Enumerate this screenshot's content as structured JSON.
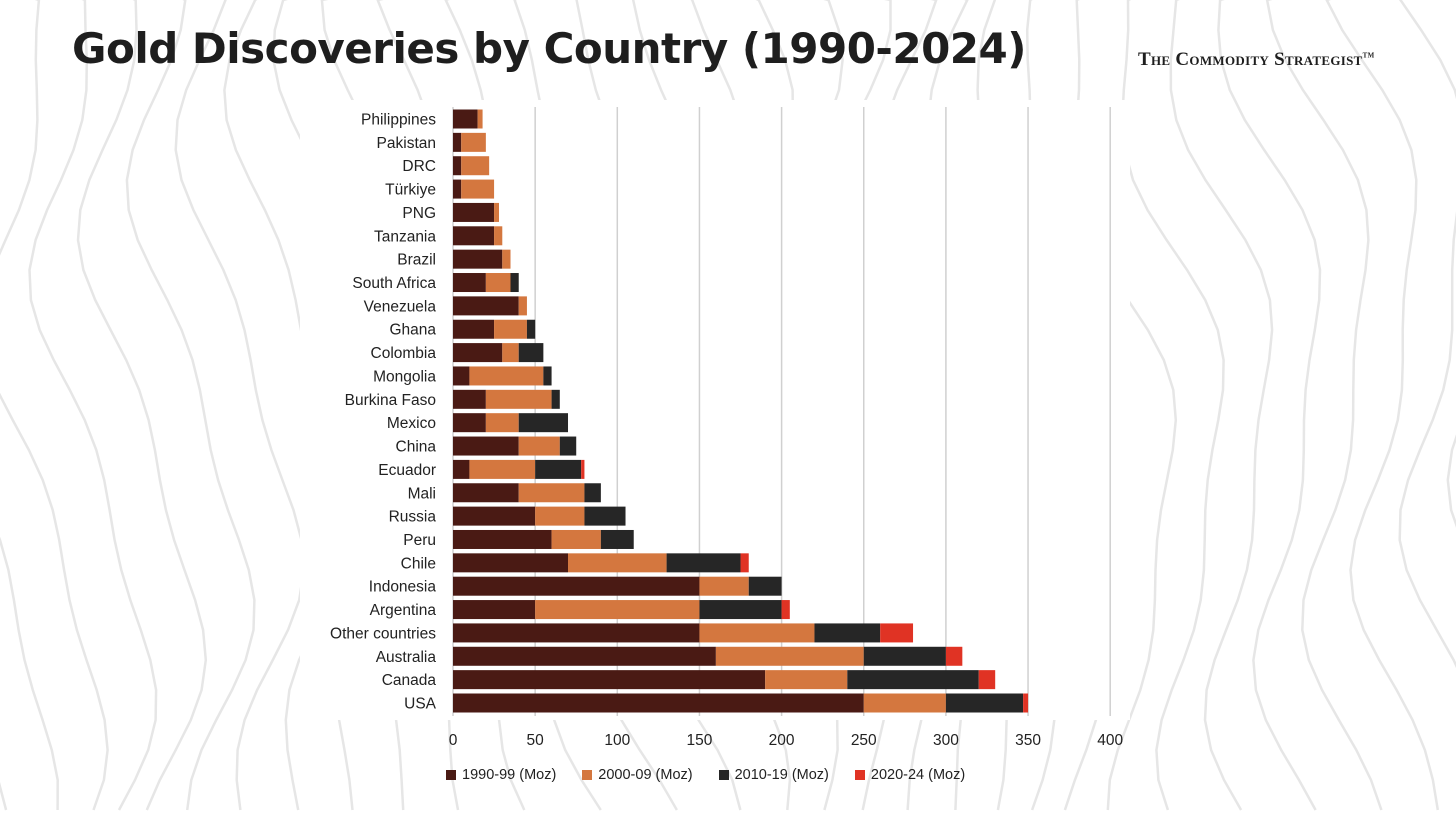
{
  "title": "Gold Discoveries by Country (1990-2024)",
  "brand": "The Commodity Strategist",
  "brand_mark": "TM",
  "colors": {
    "s1990": "#4a1a14",
    "s2000": "#d4773f",
    "s2010": "#262626",
    "s2020": "#e03324"
  },
  "chart_data": {
    "type": "bar",
    "orientation": "horizontal",
    "stacked": true,
    "title": "Gold Discoveries by Country (1990-2024)",
    "xlim": [
      0,
      400
    ],
    "xticks": [
      0,
      50,
      100,
      150,
      200,
      250,
      300,
      350,
      400
    ],
    "grid": true,
    "legend_position": "bottom",
    "categories": [
      "Philippines",
      "Pakistan",
      "DRC",
      "Türkiye",
      "PNG",
      "Tanzania",
      "Brazil",
      "South Africa",
      "Venezuela",
      "Ghana",
      "Colombia",
      "Mongolia",
      "Burkina Faso",
      "Mexico",
      "China",
      "Ecuador",
      "Mali",
      "Russia",
      "Peru",
      "Chile",
      "Indonesia",
      "Argentina",
      "Other countries",
      "Australia",
      "Canada",
      "USA"
    ],
    "series": [
      {
        "name": "1990-99 (Moz)",
        "color": "#4a1a14",
        "values": [
          15,
          5,
          5,
          5,
          25,
          25,
          30,
          20,
          40,
          25,
          30,
          10,
          20,
          20,
          40,
          10,
          40,
          50,
          60,
          70,
          150,
          50,
          150,
          160,
          190,
          250
        ]
      },
      {
        "name": "2000-09 (Moz)",
        "color": "#d4773f",
        "values": [
          3,
          15,
          17,
          20,
          3,
          5,
          5,
          15,
          5,
          20,
          10,
          45,
          40,
          20,
          25,
          40,
          40,
          30,
          30,
          60,
          30,
          100,
          70,
          90,
          50,
          50
        ]
      },
      {
        "name": "2010-19 (Moz)",
        "color": "#262626",
        "values": [
          0,
          0,
          0,
          0,
          0,
          0,
          0,
          5,
          0,
          5,
          15,
          5,
          5,
          30,
          10,
          28,
          10,
          25,
          20,
          45,
          20,
          50,
          40,
          50,
          80,
          47
        ]
      },
      {
        "name": "2020-24 (Moz)",
        "color": "#e03324",
        "values": [
          0,
          0,
          0,
          0,
          0,
          0,
          0,
          0,
          0,
          0,
          0,
          0,
          0,
          0,
          0,
          2,
          0,
          0,
          0,
          5,
          0,
          5,
          20,
          10,
          10,
          3
        ]
      }
    ]
  }
}
